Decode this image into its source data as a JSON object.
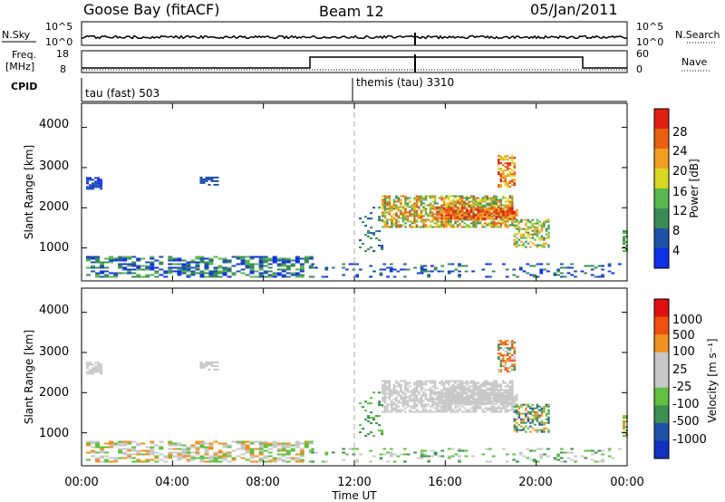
{
  "header": {
    "station": "Goose Bay (fitACF)",
    "beam": "Beam 12",
    "date": "05/Jan/2011"
  },
  "strips": {
    "nsky_label": "N.Sky",
    "nsky_ticks": [
      "10^5",
      "10^0"
    ],
    "nsearch_label": "N.Search",
    "nsearch_ticks": [
      "10^5",
      "10^0"
    ],
    "freq_label_1": "Freq.",
    "freq_label_2": "[MHz]",
    "freq_ticks": [
      "18",
      "8"
    ],
    "nave_label": "Nave",
    "nave_ticks": [
      "60",
      "0"
    ],
    "cpid_label": "CPID",
    "cpid_1": "tau (fast) 503",
    "cpid_2": "themis (tau) 3310"
  },
  "colors": {
    "power": [
      "#1030e8",
      "#2050a8",
      "#3a8a58",
      "#58b850",
      "#d8d820",
      "#f0a020",
      "#e86010",
      "#e02010"
    ],
    "velocity": [
      "#e01010",
      "#f05010",
      "#f09020",
      "#c8c8c8",
      "#c8c8c8",
      "#60c040",
      "#3a9050",
      "#2050a8",
      "#1030c0"
    ]
  },
  "chart_data": [
    {
      "type": "heatmap",
      "panel": "power",
      "ylabel": "Slant Range [km]",
      "yticks": [
        "1000",
        "2000",
        "3000",
        "4000"
      ],
      "ylim": [
        180,
        4600
      ],
      "xlim_hours": [
        0,
        24
      ],
      "colorbar_label": "Power [dB]",
      "colorbar_ticks": [
        "4",
        "8",
        "12",
        "16",
        "20",
        "24",
        "28"
      ],
      "colorbar_range": [
        0,
        30
      ]
    },
    {
      "type": "heatmap",
      "panel": "velocity",
      "ylabel": "Slant Range [km]",
      "yticks": [
        "1000",
        "2000",
        "3000",
        "4000"
      ],
      "ylim": [
        180,
        4600
      ],
      "xlim_hours": [
        0,
        24
      ],
      "colorbar_label": "Velocity [m s⁻¹]",
      "colorbar_ticks": [
        "1000",
        "500",
        "100",
        "25",
        "-25",
        "-100",
        "-500",
        "-1000"
      ]
    }
  ],
  "xaxis": {
    "label": "Time UT",
    "ticks": [
      "00:00",
      "04:00",
      "08:00",
      "12:00",
      "16:00",
      "20:00",
      "00:00"
    ]
  }
}
